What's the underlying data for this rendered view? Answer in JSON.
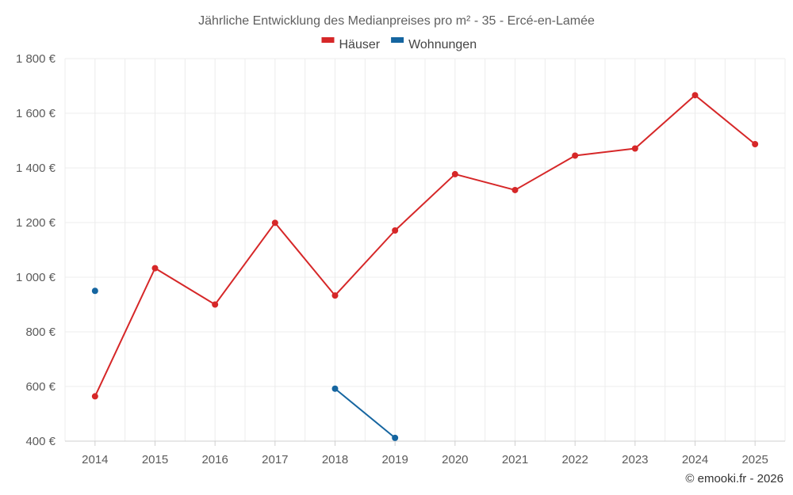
{
  "chart_data": {
    "type": "line",
    "title": "Jährliche Entwicklung des Medianpreises pro m² - 35 - Ercé-en-Lamée",
    "categories": [
      "2014",
      "2015",
      "2016",
      "2017",
      "2018",
      "2019",
      "2020",
      "2021",
      "2022",
      "2023",
      "2024",
      "2025"
    ],
    "series": [
      {
        "name": "Häuser",
        "color": "#d62728",
        "values": [
          564,
          1033,
          900,
          1199,
          933,
          1171,
          1377,
          1319,
          1445,
          1471,
          1666,
          1487
        ]
      },
      {
        "name": "Wohnungen",
        "color": "#1565a0",
        "values": [
          950,
          null,
          null,
          null,
          592,
          412,
          null,
          null,
          null,
          null,
          null,
          null
        ]
      }
    ],
    "yticks": [
      400,
      600,
      800,
      1000,
      1200,
      1400,
      1600,
      1800
    ],
    "ytick_labels": [
      "400 €",
      "600 €",
      "800 €",
      "1 000 €",
      "1 200 €",
      "1 400 €",
      "1 600 €",
      "1 800 €"
    ],
    "ylim": [
      400,
      1800
    ],
    "xlabel": "",
    "ylabel": "",
    "legend_position": "top-center",
    "grid": true
  },
  "credit": "© emooki.fr - 2026"
}
